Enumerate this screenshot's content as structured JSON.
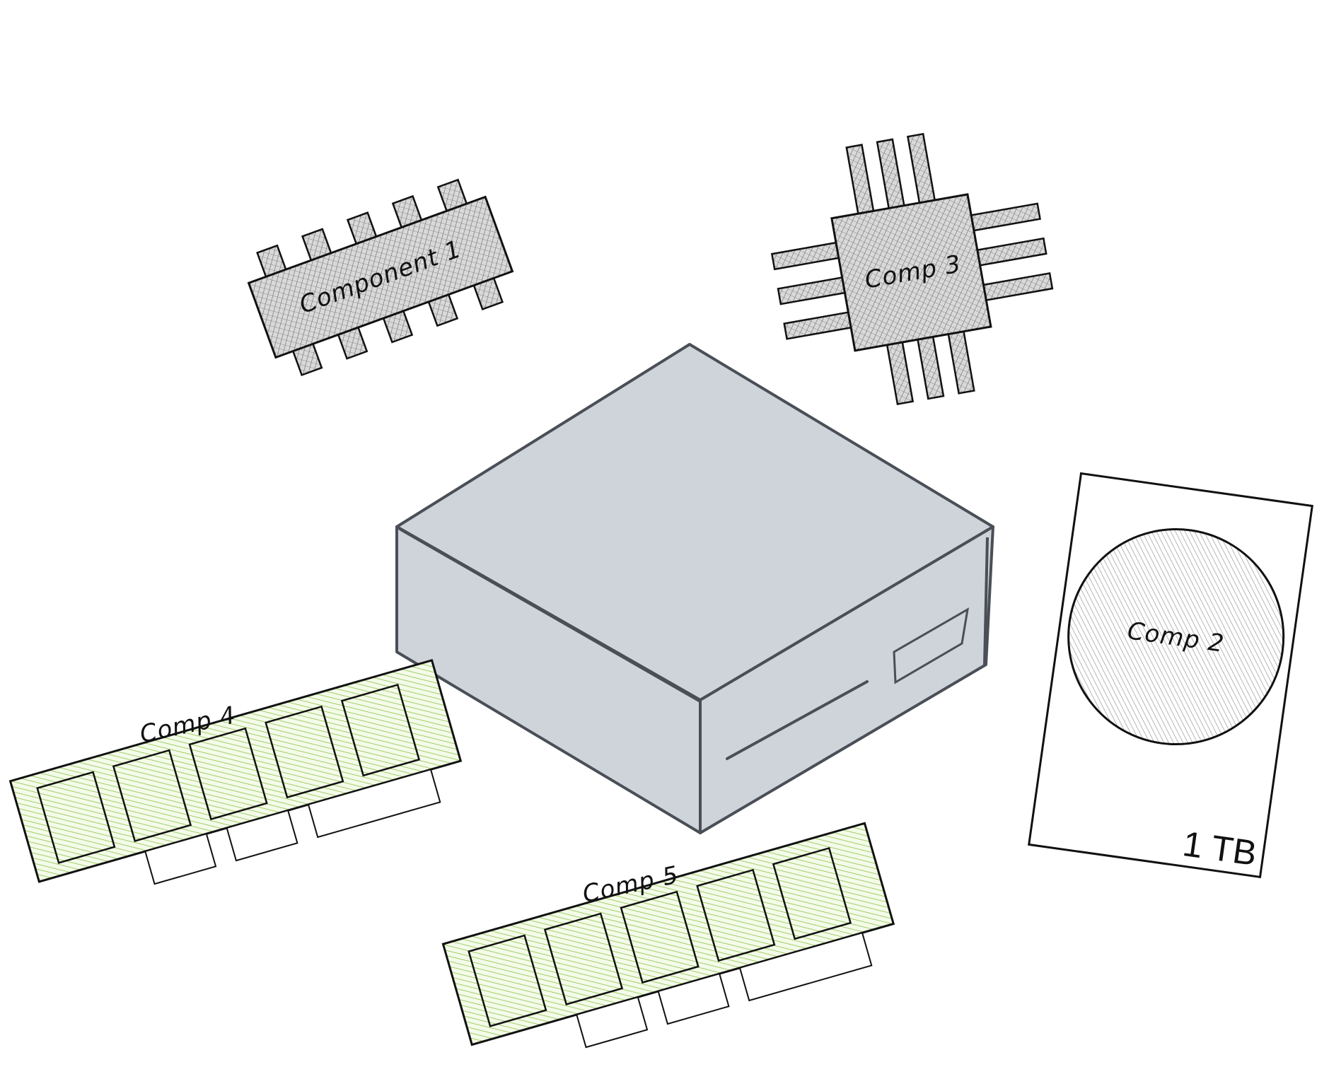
{
  "components": {
    "component1": {
      "label": "Component 1"
    },
    "comp2": {
      "label": "Comp 2",
      "capacity": "1 TB"
    },
    "comp3": {
      "label": "Comp 3"
    },
    "comp4": {
      "label": "Comp 4"
    },
    "comp5": {
      "label": "Comp 5"
    }
  },
  "colors": {
    "chip_fill": "#b5b5b5",
    "ram_fill": "#8bc34a",
    "box_fill": "#cfd3da",
    "box_stroke": "#4a4f57",
    "ink": "#111111"
  }
}
